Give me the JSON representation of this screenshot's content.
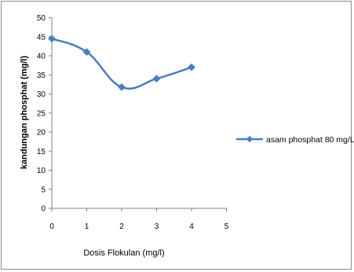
{
  "chart_data": {
    "type": "line",
    "title": "",
    "xlabel": "Dosis Flokulan (mg/l)",
    "ylabel": "kandungan phosphat (mg/l)",
    "xlim": [
      0,
      5
    ],
    "ylim": [
      0,
      50
    ],
    "x_ticks": [
      "0",
      "1",
      "2",
      "3",
      "4",
      "5"
    ],
    "y_ticks": [
      "0",
      "5",
      "10",
      "15",
      "20",
      "25",
      "30",
      "35",
      "40",
      "45",
      "50"
    ],
    "grid": false,
    "legend_position": "right",
    "series": [
      {
        "name": "asam phosphat 80 mg/L",
        "color": "#4a7ebb",
        "marker": "diamond",
        "smooth": true,
        "x": [
          0,
          1,
          2,
          3,
          4
        ],
        "y": [
          44.5,
          41,
          31.8,
          34,
          37
        ]
      }
    ]
  }
}
